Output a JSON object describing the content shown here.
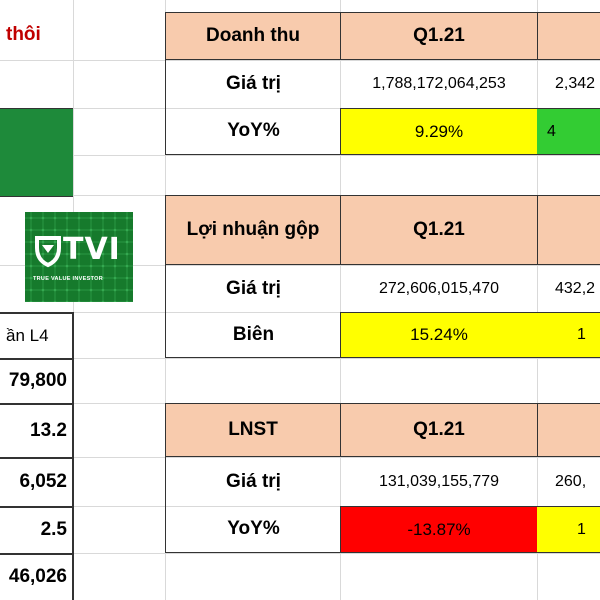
{
  "left_col": {
    "title_fragment": "thôi",
    "label_fragment": "ần L4",
    "values": [
      "79,800",
      "13.2",
      "6,052",
      "2.5",
      "46,026"
    ]
  },
  "logo": {
    "text": "TVI",
    "tagline": "TRUE VALUE INVESTOR"
  },
  "tables": [
    {
      "header": "Doanh thu",
      "period": "Q1.21",
      "row1_label": "Giá trị",
      "row1_value": "1,788,172,064,253",
      "row1_next": "2,342",
      "row2_label": "YoY%",
      "row2_value": "9.29%",
      "row2_next": "4"
    },
    {
      "header": "Lợi nhuận gộp",
      "period": "Q1.21",
      "row1_label": "Giá trị",
      "row1_value": "272,606,015,470",
      "row1_next": "432,2",
      "row2_label": "Biên",
      "row2_value": "15.24%",
      "row2_next": "1"
    },
    {
      "header": "LNST",
      "period": "Q1.21",
      "row1_label": "Giá trị",
      "row1_value": "131,039,155,779",
      "row1_next": "260,",
      "row2_label": "YoY%",
      "row2_value": "-13.87%",
      "row2_next": "1"
    }
  ],
  "colors": {
    "header_fill": "#f8cbad",
    "yellow": "#ffff00",
    "green": "#33cc33",
    "red": "#ff0000",
    "dark_green": "#1e8a3a"
  }
}
